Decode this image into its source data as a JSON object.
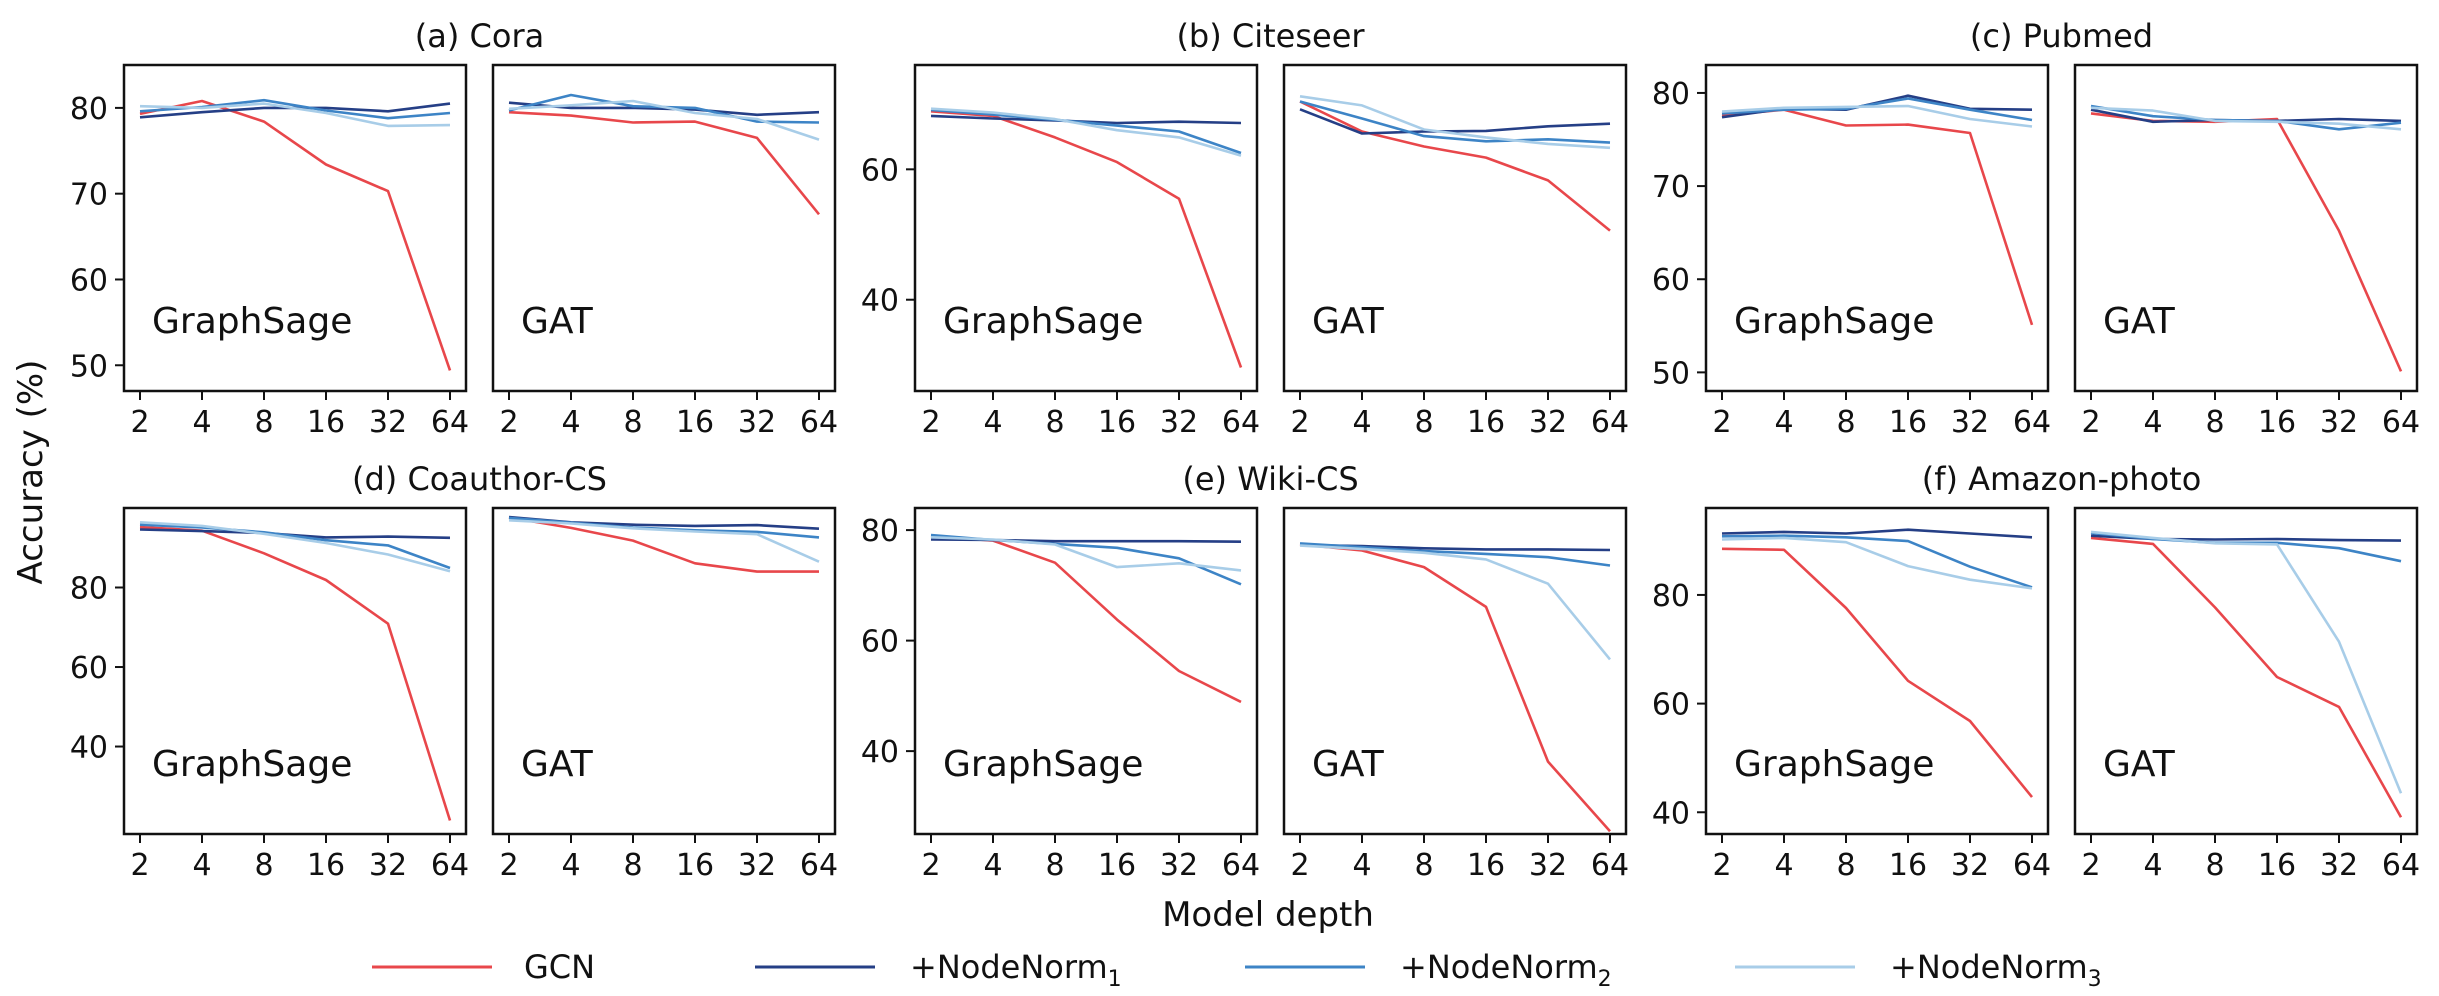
{
  "chart_data": {
    "type": "line",
    "xlabel": "Model depth",
    "ylabel": "Accuracy (%)",
    "x": [
      2,
      4,
      8,
      16,
      32,
      64
    ],
    "x_tick_labels": [
      "2",
      "4",
      "8",
      "16",
      "32",
      "64"
    ],
    "x_scale": "log2",
    "legend": {
      "placement": "bottom-center",
      "entries": [
        {
          "key": "gcn",
          "label": "GCN",
          "subscript": "",
          "color": "#e8474b"
        },
        {
          "key": "nn1",
          "label": "+NodeNorm",
          "subscript": "1",
          "color": "#253f86"
        },
        {
          "key": "nn2",
          "label": "+NodeNorm",
          "subscript": "2",
          "color": "#3d84c6"
        },
        {
          "key": "nn3",
          "label": "+NodeNorm",
          "subscript": "3",
          "color": "#a8cde8"
        }
      ]
    },
    "datasets": [
      {
        "title": "(a) Cora",
        "ylim": [
          47,
          85
        ],
        "yticks": [
          50,
          60,
          70,
          80
        ],
        "panels": [
          {
            "model": "GraphSage",
            "series": [
              {
                "key": "gcn",
                "values": [
                  79.3,
                  80.8,
                  78.4,
                  73.4,
                  70.3,
                  49.4
                ]
              },
              {
                "key": "nn1",
                "values": [
                  78.9,
                  79.5,
                  80.0,
                  80.0,
                  79.6,
                  80.5
                ]
              },
              {
                "key": "nn2",
                "values": [
                  79.6,
                  80.1,
                  80.9,
                  79.7,
                  78.8,
                  79.4
                ]
              },
              {
                "key": "nn3",
                "values": [
                  80.2,
                  80.0,
                  80.5,
                  79.4,
                  77.9,
                  78.0
                ]
              }
            ]
          },
          {
            "model": "GAT",
            "series": [
              {
                "key": "gcn",
                "values": [
                  79.5,
                  79.1,
                  78.3,
                  78.4,
                  76.5,
                  67.6
                ]
              },
              {
                "key": "nn1",
                "values": [
                  80.6,
                  80.0,
                  80.0,
                  79.8,
                  79.2,
                  79.5
                ]
              },
              {
                "key": "nn2",
                "values": [
                  79.7,
                  81.5,
                  80.2,
                  80.0,
                  78.4,
                  78.3
                ]
              },
              {
                "key": "nn3",
                "values": [
                  79.9,
                  80.3,
                  80.8,
                  79.4,
                  78.7,
                  76.3
                ]
              }
            ]
          }
        ]
      },
      {
        "title": "(b) Citeseer",
        "ylim": [
          26,
          76
        ],
        "yticks": [
          40,
          60
        ],
        "panels": [
          {
            "model": "GraphSage",
            "series": [
              {
                "key": "gcn",
                "values": [
                  68.9,
                  68.2,
                  64.9,
                  61.1,
                  55.5,
                  29.6
                ]
              },
              {
                "key": "nn1",
                "values": [
                  68.2,
                  67.8,
                  67.5,
                  67.1,
                  67.3,
                  67.1
                ]
              },
              {
                "key": "nn2",
                "values": [
                  69.1,
                  68.4,
                  67.6,
                  66.7,
                  65.8,
                  62.5
                ]
              },
              {
                "key": "nn3",
                "values": [
                  69.3,
                  68.7,
                  67.7,
                  66.0,
                  64.9,
                  62.1
                ]
              }
            ]
          },
          {
            "model": "GAT",
            "series": [
              {
                "key": "gcn",
                "values": [
                  70.4,
                  65.8,
                  63.5,
                  61.8,
                  58.3,
                  50.6
                ]
              },
              {
                "key": "nn1",
                "values": [
                  69.2,
                  65.5,
                  65.8,
                  65.9,
                  66.6,
                  67.0
                ]
              },
              {
                "key": "nn2",
                "values": [
                  70.4,
                  67.8,
                  65.1,
                  64.3,
                  64.6,
                  64.1
                ]
              },
              {
                "key": "nn3",
                "values": [
                  71.2,
                  69.8,
                  66.1,
                  64.9,
                  63.9,
                  63.3
                ]
              }
            ]
          }
        ]
      },
      {
        "title": "(c) Pubmed",
        "ylim": [
          48,
          83
        ],
        "yticks": [
          50,
          60,
          70,
          80
        ],
        "panels": [
          {
            "model": "GraphSage",
            "series": [
              {
                "key": "gcn",
                "values": [
                  77.6,
                  78.2,
                  76.5,
                  76.6,
                  75.7,
                  55.1
                ]
              },
              {
                "key": "nn1",
                "values": [
                  77.4,
                  78.3,
                  78.2,
                  79.7,
                  78.3,
                  78.2
                ]
              },
              {
                "key": "nn2",
                "values": [
                  77.8,
                  78.2,
                  78.3,
                  79.4,
                  78.2,
                  77.1
                ]
              },
              {
                "key": "nn3",
                "values": [
                  78.0,
                  78.4,
                  78.5,
                  78.6,
                  77.2,
                  76.4
                ]
              }
            ]
          },
          {
            "model": "GAT",
            "series": [
              {
                "key": "gcn",
                "values": [
                  77.8,
                  77.0,
                  76.9,
                  77.2,
                  65.2,
                  50.1
                ]
              },
              {
                "key": "nn1",
                "values": [
                  78.2,
                  76.9,
                  77.1,
                  77.0,
                  77.2,
                  77.0
                ]
              },
              {
                "key": "nn2",
                "values": [
                  78.6,
                  77.5,
                  77.1,
                  77.0,
                  76.1,
                  76.8
                ]
              },
              {
                "key": "nn3",
                "values": [
                  78.4,
                  78.1,
                  77.0,
                  76.9,
                  76.7,
                  76.1
                ]
              }
            ]
          }
        ]
      },
      {
        "title": "(d) Coauthor-CS",
        "ylim": [
          18,
          100
        ],
        "yticks": [
          40,
          60,
          80
        ],
        "panels": [
          {
            "model": "GraphSage",
            "series": [
              {
                "key": "gcn",
                "values": [
                  95.2,
                  94.3,
                  88.6,
                  81.9,
                  70.9,
                  21.4
                ]
              },
              {
                "key": "nn1",
                "values": [
                  94.6,
                  94.2,
                  93.7,
                  92.6,
                  92.8,
                  92.5
                ]
              },
              {
                "key": "nn2",
                "values": [
                  95.8,
                  95.1,
                  93.9,
                  91.9,
                  90.6,
                  84.9
                ]
              },
              {
                "key": "nn3",
                "values": [
                  96.4,
                  95.5,
                  93.5,
                  91.2,
                  88.3,
                  84.1
                ]
              }
            ]
          },
          {
            "model": "GAT",
            "series": [
              {
                "key": "gcn",
                "values": [
                  97.6,
                  95.0,
                  91.8,
                  86.1,
                  84.0,
                  84.0
                ]
              },
              {
                "key": "nn1",
                "values": [
                  97.7,
                  96.4,
                  95.8,
                  95.5,
                  95.7,
                  94.8
                ]
              },
              {
                "key": "nn2",
                "values": [
                  97.5,
                  96.3,
                  95.1,
                  94.4,
                  94.0,
                  92.6
                ]
              },
              {
                "key": "nn3",
                "values": [
                  96.9,
                  96.1,
                  94.9,
                  94.1,
                  93.4,
                  86.5
                ]
              }
            ]
          }
        ]
      },
      {
        "title": "(e) Wiki-CS",
        "ylim": [
          25,
          84
        ],
        "yticks": [
          40,
          60,
          80
        ],
        "panels": [
          {
            "model": "GraphSage",
            "series": [
              {
                "key": "gcn",
                "values": [
                  78.9,
                  78.1,
                  74.1,
                  63.8,
                  54.5,
                  48.9
                ]
              },
              {
                "key": "nn1",
                "values": [
                  78.3,
                  78.2,
                  78.0,
                  78.0,
                  78.0,
                  77.9
                ]
              },
              {
                "key": "nn2",
                "values": [
                  79.1,
                  78.2,
                  77.5,
                  76.8,
                  74.9,
                  70.2
                ]
              },
              {
                "key": "nn3",
                "values": [
                  78.7,
                  78.3,
                  77.4,
                  73.3,
                  74.0,
                  72.7
                ]
              }
            ]
          },
          {
            "model": "GAT",
            "series": [
              {
                "key": "gcn",
                "values": [
                  77.4,
                  76.3,
                  73.3,
                  66.1,
                  38.1,
                  25.5
                ]
              },
              {
                "key": "nn1",
                "values": [
                  77.3,
                  77.1,
                  76.7,
                  76.5,
                  76.5,
                  76.4
                ]
              },
              {
                "key": "nn2",
                "values": [
                  77.6,
                  76.9,
                  76.2,
                  75.7,
                  75.1,
                  73.6
                ]
              },
              {
                "key": "nn3",
                "values": [
                  77.2,
                  76.6,
                  75.9,
                  74.7,
                  70.3,
                  56.6
                ]
              }
            ]
          }
        ]
      },
      {
        "title": "(f) Amazon-photo",
        "ylim": [
          36,
          96
        ],
        "yticks": [
          40,
          60,
          80
        ],
        "panels": [
          {
            "model": "GraphSage",
            "series": [
              {
                "key": "gcn",
                "values": [
                  88.5,
                  88.3,
                  77.6,
                  64.2,
                  56.8,
                  42.8
                ]
              },
              {
                "key": "nn1",
                "values": [
                  91.3,
                  91.6,
                  91.3,
                  92.0,
                  91.3,
                  90.6
                ]
              },
              {
                "key": "nn2",
                "values": [
                  90.8,
                  90.9,
                  90.6,
                  89.9,
                  85.2,
                  81.4
                ]
              },
              {
                "key": "nn3",
                "values": [
                  90.2,
                  90.5,
                  89.7,
                  85.3,
                  82.8,
                  81.2
                ]
              }
            ]
          },
          {
            "model": "GAT",
            "series": [
              {
                "key": "gcn",
                "values": [
                  90.5,
                  89.4,
                  77.7,
                  64.9,
                  59.4,
                  39.1
                ]
              },
              {
                "key": "nn1",
                "values": [
                  90.9,
                  90.3,
                  90.2,
                  90.3,
                  90.1,
                  90.0
                ]
              },
              {
                "key": "nn2",
                "values": [
                  91.4,
                  90.3,
                  89.6,
                  89.6,
                  88.6,
                  86.2
                ]
              },
              {
                "key": "nn3",
                "values": [
                  91.6,
                  90.5,
                  89.5,
                  89.3,
                  71.4,
                  43.5
                ]
              }
            ]
          }
        ]
      }
    ]
  }
}
